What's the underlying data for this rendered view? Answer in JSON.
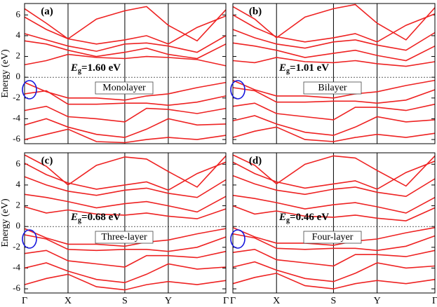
{
  "chart_data": [
    {
      "type": "line",
      "panel_label": "(a)",
      "ylabel": "Energy (eV)",
      "gap_symbol": "E",
      "gap_subscript": "g",
      "gap_text": "=1.60 eV",
      "layer_label": "Monolayer",
      "x": [
        0,
        0.108,
        0.216,
        0.357,
        0.498,
        0.606,
        0.714,
        0.857,
        1
      ],
      "xlim": [
        0,
        1
      ],
      "xticks": [
        0,
        0.216,
        0.498,
        0.714,
        1
      ],
      "ylim": [
        -6.4,
        7.1
      ],
      "yticks": [
        -6,
        -4,
        -2,
        0,
        2,
        4,
        6
      ],
      "fermi_level": 0,
      "series": [
        {
          "color": "#ee2222",
          "values": [
            6.6,
            5.2,
            3.7,
            5.6,
            6.4,
            6.8,
            5.0,
            3.5,
            6.5
          ]
        },
        {
          "color": "#ee2222",
          "values": [
            5.8,
            4.6,
            3.7,
            3.2,
            3.6,
            4.0,
            3.2,
            4.8,
            5.9
          ]
        },
        {
          "color": "#ee2222",
          "values": [
            4.2,
            3.6,
            3.0,
            2.5,
            3.2,
            3.3,
            3.0,
            2.4,
            4.0
          ]
        },
        {
          "color": "#ee2222",
          "values": [
            3.5,
            3.2,
            2.6,
            2.0,
            2.4,
            2.8,
            2.2,
            1.8,
            3.2
          ]
        },
        {
          "color": "#ee2222",
          "values": [
            1.2,
            1.6,
            2.2,
            1.9,
            1.8,
            2.0,
            1.9,
            1.7,
            1.1
          ]
        },
        {
          "color": "#ee2222",
          "values": [
            -0.5,
            -1.4,
            -2.0,
            -2.0,
            -2.2,
            -1.8,
            -1.6,
            -1.0,
            -0.5
          ]
        },
        {
          "color": "#ee2222",
          "values": [
            -1.6,
            -1.3,
            -2.6,
            -2.6,
            -2.5,
            -2.5,
            -2.7,
            -2.4,
            -1.8
          ]
        },
        {
          "color": "#ee2222",
          "values": [
            -3.2,
            -2.8,
            -3.8,
            -4.0,
            -4.3,
            -3.0,
            -3.1,
            -3.5,
            -3.0
          ]
        },
        {
          "color": "#ee2222",
          "values": [
            -4.6,
            -4.0,
            -4.8,
            -5.5,
            -5.8,
            -5.0,
            -4.0,
            -4.6,
            -4.5
          ]
        },
        {
          "color": "#ee2222",
          "values": [
            -6.0,
            -5.5,
            -5.0,
            -6.2,
            -6.3,
            -6.0,
            -5.8,
            -6.0,
            -5.6
          ]
        }
      ]
    },
    {
      "type": "line",
      "panel_label": "(b)",
      "gap_symbol": "E",
      "gap_subscript": "g",
      "gap_text": "=1.01 eV",
      "layer_label": "Bilayer",
      "x": [
        0,
        0.108,
        0.216,
        0.357,
        0.498,
        0.606,
        0.714,
        0.857,
        1
      ],
      "xlim": [
        0,
        1
      ],
      "xticks": [
        0,
        0.216,
        0.498,
        0.714,
        1
      ],
      "ylim": [
        -6.4,
        7.1
      ],
      "yticks": [
        -6,
        -4,
        -2,
        0,
        2,
        4,
        6
      ],
      "fermi_level": 0,
      "series": [
        {
          "color": "#ee2222",
          "values": [
            6.8,
            5.6,
            3.8,
            5.8,
            6.6,
            7.0,
            5.2,
            3.6,
            6.7
          ]
        },
        {
          "color": "#ee2222",
          "values": [
            6.0,
            4.8,
            3.9,
            3.4,
            3.8,
            4.2,
            3.4,
            5.0,
            6.1
          ]
        },
        {
          "color": "#ee2222",
          "values": [
            4.6,
            3.8,
            3.2,
            2.8,
            3.4,
            3.6,
            3.1,
            2.6,
            4.3
          ]
        },
        {
          "color": "#ee2222",
          "values": [
            3.3,
            3.0,
            2.6,
            1.9,
            2.3,
            2.6,
            2.1,
            1.6,
            3.0
          ]
        },
        {
          "color": "#ee2222",
          "values": [
            1.6,
            1.4,
            1.9,
            1.5,
            1.4,
            1.6,
            1.3,
            1.05,
            1.5
          ]
        },
        {
          "color": "#ee2222",
          "values": [
            -0.3,
            -1.2,
            -1.8,
            -1.8,
            -2.0,
            -1.6,
            -1.4,
            -0.8,
            -0.3
          ]
        },
        {
          "color": "#ee2222",
          "values": [
            -1.0,
            -1.3,
            -2.4,
            -2.4,
            -2.3,
            -2.3,
            -2.5,
            -2.2,
            -1.2
          ]
        },
        {
          "color": "#ee2222",
          "values": [
            -2.8,
            -2.5,
            -3.5,
            -3.8,
            -4.1,
            -2.9,
            -2.9,
            -3.2,
            -2.6
          ]
        },
        {
          "color": "#ee2222",
          "values": [
            -4.2,
            -3.7,
            -4.5,
            -5.3,
            -5.6,
            -4.8,
            -3.8,
            -4.3,
            -4.1
          ]
        },
        {
          "color": "#ee2222",
          "values": [
            -5.8,
            -5.2,
            -4.8,
            -6.0,
            -6.2,
            -5.8,
            -5.5,
            -5.8,
            -5.4
          ]
        }
      ]
    },
    {
      "type": "line",
      "panel_label": "(c)",
      "ylabel": "Energy (eV)",
      "gap_symbol": "E",
      "gap_subscript": "g",
      "gap_text": "=0.68 eV",
      "layer_label": "Three-layer",
      "x": [
        0,
        0.108,
        0.216,
        0.357,
        0.498,
        0.606,
        0.714,
        0.857,
        1
      ],
      "xlim": [
        0,
        1
      ],
      "xticks": [
        {
          "value": 0,
          "label": "Γ"
        },
        {
          "value": 0.216,
          "label": "X"
        },
        {
          "value": 0.498,
          "label": "S"
        },
        {
          "value": 0.714,
          "label": "Y"
        },
        {
          "value": 1,
          "label": "Γ"
        }
      ],
      "ylim": [
        -6.4,
        7.1
      ],
      "yticks": [
        -6,
        -4,
        -2,
        0,
        2,
        4,
        6
      ],
      "fermi_level": 0,
      "series": [
        {
          "color": "#ee2222",
          "values": [
            6.9,
            5.8,
            4.0,
            5.9,
            6.7,
            6.5,
            5.3,
            3.8,
            6.8
          ]
        },
        {
          "color": "#ee2222",
          "values": [
            6.1,
            5.0,
            4.2,
            3.6,
            4.0,
            4.3,
            3.5,
            5.1,
            6.2
          ]
        },
        {
          "color": "#ee2222",
          "values": [
            4.8,
            4.0,
            3.4,
            3.0,
            3.5,
            3.7,
            3.2,
            2.8,
            4.5
          ]
        },
        {
          "color": "#ee2222",
          "values": [
            3.1,
            2.8,
            2.4,
            1.8,
            2.2,
            2.4,
            2.0,
            1.4,
            2.9
          ]
        },
        {
          "color": "#ee2222",
          "values": [
            1.9,
            1.3,
            1.6,
            1.2,
            1.1,
            1.3,
            1.0,
            0.75,
            1.7
          ]
        },
        {
          "color": "#ee2222",
          "values": [
            -0.2,
            -1.1,
            -1.7,
            -1.7,
            -1.9,
            -1.5,
            -1.3,
            -0.7,
            -0.2
          ]
        },
        {
          "color": "#ee2222",
          "values": [
            -0.8,
            -1.2,
            -2.2,
            -2.3,
            -2.2,
            -2.2,
            -2.4,
            -2.0,
            -1.0
          ]
        },
        {
          "color": "#ee2222",
          "values": [
            -2.6,
            -2.3,
            -3.3,
            -3.6,
            -3.9,
            -2.8,
            -2.8,
            -3.0,
            -2.4
          ]
        },
        {
          "color": "#ee2222",
          "values": [
            -4.0,
            -3.5,
            -4.3,
            -5.1,
            -5.4,
            -4.6,
            -3.6,
            -4.1,
            -3.9
          ]
        },
        {
          "color": "#ee2222",
          "values": [
            -5.6,
            -5.0,
            -4.6,
            -5.8,
            -6.1,
            -5.6,
            -5.3,
            -5.6,
            -5.2
          ]
        }
      ]
    },
    {
      "type": "line",
      "panel_label": "(d)",
      "gap_symbol": "E",
      "gap_subscript": "g",
      "gap_text": "=0.46 eV",
      "layer_label": "Four-layer",
      "x": [
        0,
        0.108,
        0.216,
        0.357,
        0.498,
        0.606,
        0.714,
        0.857,
        1
      ],
      "xlim": [
        0,
        1
      ],
      "xticks": [
        {
          "value": 0,
          "label": "Γ"
        },
        {
          "value": 0.216,
          "label": "X"
        },
        {
          "value": 0.498,
          "label": "S"
        },
        {
          "value": 0.714,
          "label": "Y"
        },
        {
          "value": 1,
          "label": "Γ"
        }
      ],
      "ylim": [
        -6.4,
        7.1
      ],
      "yticks": [
        -6,
        -4,
        -2,
        0,
        2,
        4,
        6
      ],
      "fermi_level": 0,
      "series": [
        {
          "color": "#ee2222",
          "values": [
            6.9,
            5.9,
            4.1,
            6.0,
            6.8,
            6.6,
            5.4,
            3.9,
            6.8
          ]
        },
        {
          "color": "#ee2222",
          "values": [
            6.2,
            5.1,
            4.3,
            3.7,
            4.1,
            4.4,
            3.6,
            5.2,
            6.3
          ]
        },
        {
          "color": "#ee2222",
          "values": [
            4.9,
            4.1,
            3.5,
            3.1,
            3.6,
            3.8,
            3.3,
            2.9,
            4.6
          ]
        },
        {
          "color": "#ee2222",
          "values": [
            3.0,
            2.7,
            2.3,
            1.7,
            2.1,
            2.3,
            1.9,
            1.3,
            2.8
          ]
        },
        {
          "color": "#ee2222",
          "values": [
            2.0,
            1.2,
            1.5,
            1.0,
            0.9,
            1.1,
            0.8,
            0.55,
            1.8
          ]
        },
        {
          "color": "#ee2222",
          "values": [
            -0.1,
            -1.0,
            -1.6,
            -1.6,
            -1.8,
            -1.4,
            -1.2,
            -0.6,
            -0.1
          ]
        },
        {
          "color": "#ee2222",
          "values": [
            -0.7,
            -1.1,
            -2.1,
            -2.2,
            -2.1,
            -2.1,
            -2.3,
            -1.9,
            -0.9
          ]
        },
        {
          "color": "#ee2222",
          "values": [
            -2.5,
            -2.2,
            -3.2,
            -3.5,
            -3.8,
            -2.7,
            -2.7,
            -2.9,
            -2.3
          ]
        },
        {
          "color": "#ee2222",
          "values": [
            -3.9,
            -3.4,
            -4.2,
            -5.0,
            -5.3,
            -4.5,
            -3.5,
            -4.0,
            -3.8
          ]
        },
        {
          "color": "#ee2222",
          "values": [
            -5.5,
            -4.9,
            -4.5,
            -5.7,
            -6.0,
            -5.5,
            -5.2,
            -5.5,
            -5.1
          ]
        }
      ]
    }
  ]
}
